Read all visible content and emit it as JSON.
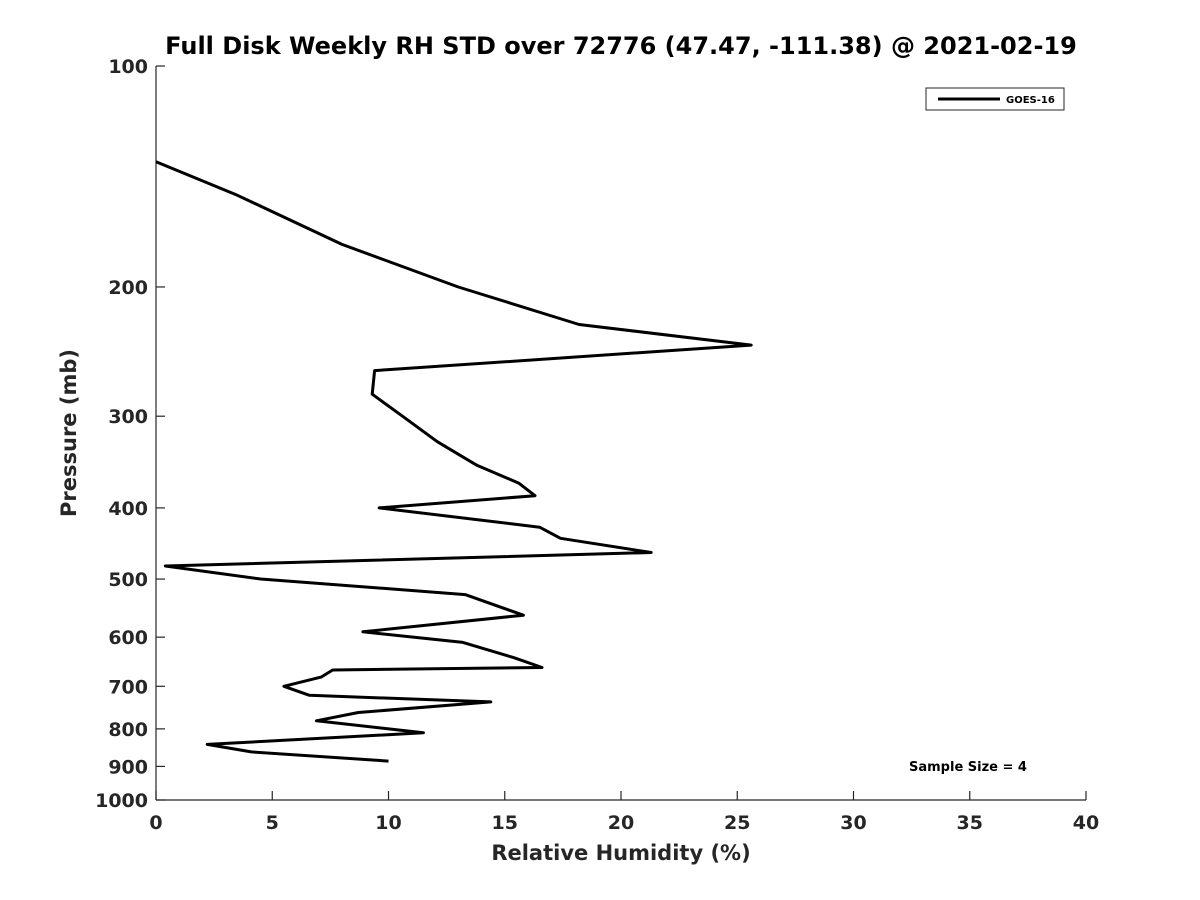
{
  "chart_data": {
    "type": "line",
    "title": "Full Disk Weekly RH STD over 72776 (47.47, -111.38) @ 2021-02-19",
    "xlabel": "Relative Humidity (%)",
    "ylabel": "Pressure (mb)",
    "xlim": [
      0,
      40
    ],
    "ylim": [
      100,
      1000
    ],
    "y_scale": "log",
    "y_reversed": true,
    "x_ticks": [
      0,
      5,
      10,
      15,
      20,
      25,
      30,
      35,
      40
    ],
    "x_tick_labels": [
      "0",
      "5",
      "10",
      "15",
      "20",
      "25",
      "30",
      "35",
      "40"
    ],
    "y_ticks": [
      100,
      200,
      300,
      400,
      500,
      600,
      700,
      800,
      900,
      1000
    ],
    "y_tick_labels": [
      "100",
      "200",
      "300",
      "400",
      "500",
      "600",
      "700",
      "800",
      "900",
      "1000"
    ],
    "grid": false,
    "legend": {
      "position": "top-right",
      "entries": [
        "GOES-16"
      ]
    },
    "annotation": "Sample Size = 4",
    "series": [
      {
        "name": "GOES-16",
        "color": "#000000",
        "points": [
          {
            "x": 0.0,
            "y": 135
          },
          {
            "x": 3.5,
            "y": 150
          },
          {
            "x": 8.0,
            "y": 175
          },
          {
            "x": 13.0,
            "y": 200
          },
          {
            "x": 18.2,
            "y": 225
          },
          {
            "x": 25.6,
            "y": 240
          },
          {
            "x": 9.4,
            "y": 260
          },
          {
            "x": 9.3,
            "y": 280
          },
          {
            "x": 10.6,
            "y": 300
          },
          {
            "x": 12.1,
            "y": 325
          },
          {
            "x": 13.8,
            "y": 350
          },
          {
            "x": 15.6,
            "y": 370
          },
          {
            "x": 16.3,
            "y": 385
          },
          {
            "x": 9.6,
            "y": 400
          },
          {
            "x": 16.5,
            "y": 425
          },
          {
            "x": 17.4,
            "y": 440
          },
          {
            "x": 21.3,
            "y": 460
          },
          {
            "x": 0.4,
            "y": 480
          },
          {
            "x": 4.5,
            "y": 500
          },
          {
            "x": 13.3,
            "y": 525
          },
          {
            "x": 15.8,
            "y": 560
          },
          {
            "x": 8.9,
            "y": 590
          },
          {
            "x": 13.2,
            "y": 610
          },
          {
            "x": 15.4,
            "y": 640
          },
          {
            "x": 16.6,
            "y": 660
          },
          {
            "x": 7.6,
            "y": 665
          },
          {
            "x": 7.1,
            "y": 680
          },
          {
            "x": 5.5,
            "y": 700
          },
          {
            "x": 6.6,
            "y": 720
          },
          {
            "x": 14.4,
            "y": 735
          },
          {
            "x": 8.7,
            "y": 760
          },
          {
            "x": 6.9,
            "y": 780
          },
          {
            "x": 11.5,
            "y": 810
          },
          {
            "x": 2.2,
            "y": 840
          },
          {
            "x": 4.1,
            "y": 860
          },
          {
            "x": 10.0,
            "y": 885
          }
        ]
      }
    ]
  }
}
